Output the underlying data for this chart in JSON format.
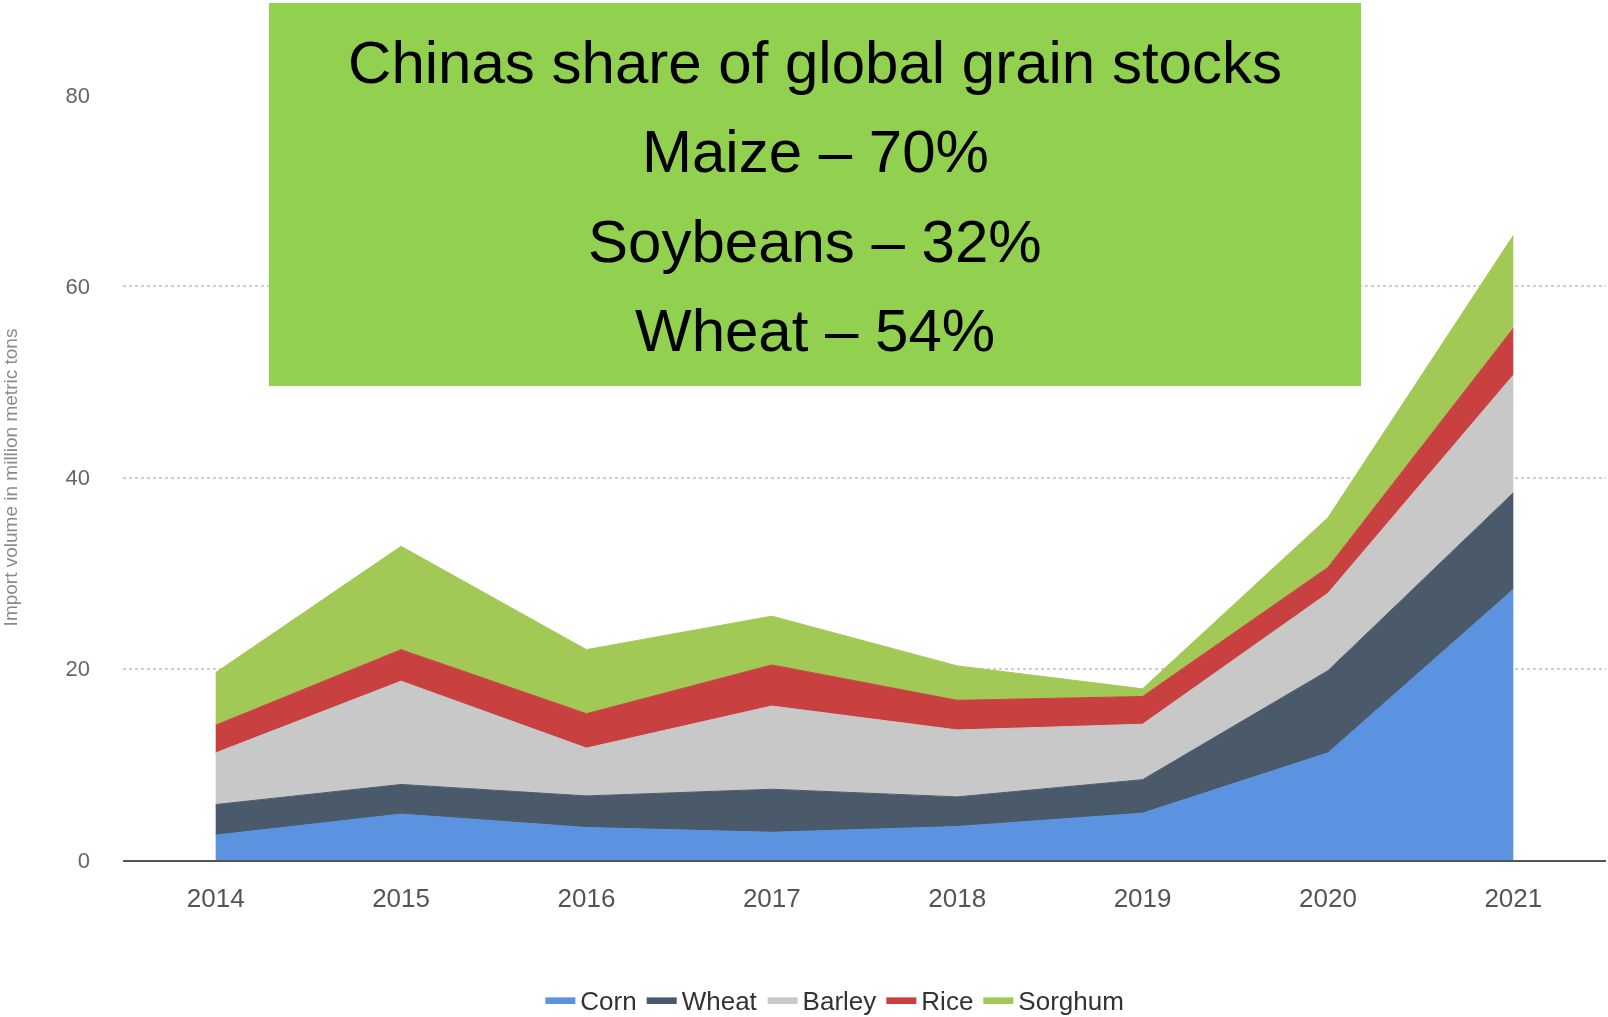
{
  "chart_data": {
    "type": "area",
    "title": "Chinas share of global grain stocks",
    "annotations": [
      "Maize – 70%",
      "Soybeans – 32%",
      "Wheat – 54%"
    ],
    "ylabel": "Import volume in million metric tons",
    "categories": [
      "2014",
      "2015",
      "2016",
      "2017",
      "2018",
      "2019",
      "2020",
      "2021"
    ],
    "stacked": true,
    "series": [
      {
        "name": "Corn",
        "color": "#5b93e0",
        "values": [
          2.6,
          4.8,
          3.4,
          2.9,
          3.5,
          4.9,
          11.2,
          28.3
        ]
      },
      {
        "name": "Wheat",
        "color": "#4a5a6a",
        "values": [
          3.2,
          3.1,
          3.3,
          4.5,
          3.1,
          3.5,
          8.6,
          10.1
        ]
      },
      {
        "name": "Barley",
        "color": "#c8c8c8",
        "values": [
          5.4,
          10.8,
          5.0,
          8.7,
          7.0,
          5.8,
          8.1,
          12.3
        ]
      },
      {
        "name": "Rice",
        "color": "#c84040",
        "values": [
          2.9,
          3.3,
          3.6,
          4.3,
          3.1,
          2.9,
          2.7,
          4.9
        ]
      },
      {
        "name": "Sorghum",
        "color": "#a2c855",
        "values": [
          5.5,
          10.8,
          6.7,
          5.1,
          3.6,
          0.8,
          5.2,
          9.7
        ]
      }
    ],
    "ylim": [
      0,
      80
    ],
    "yticks": [
      0,
      20,
      40,
      60,
      80
    ],
    "grid": "y",
    "legend": "bottom"
  }
}
